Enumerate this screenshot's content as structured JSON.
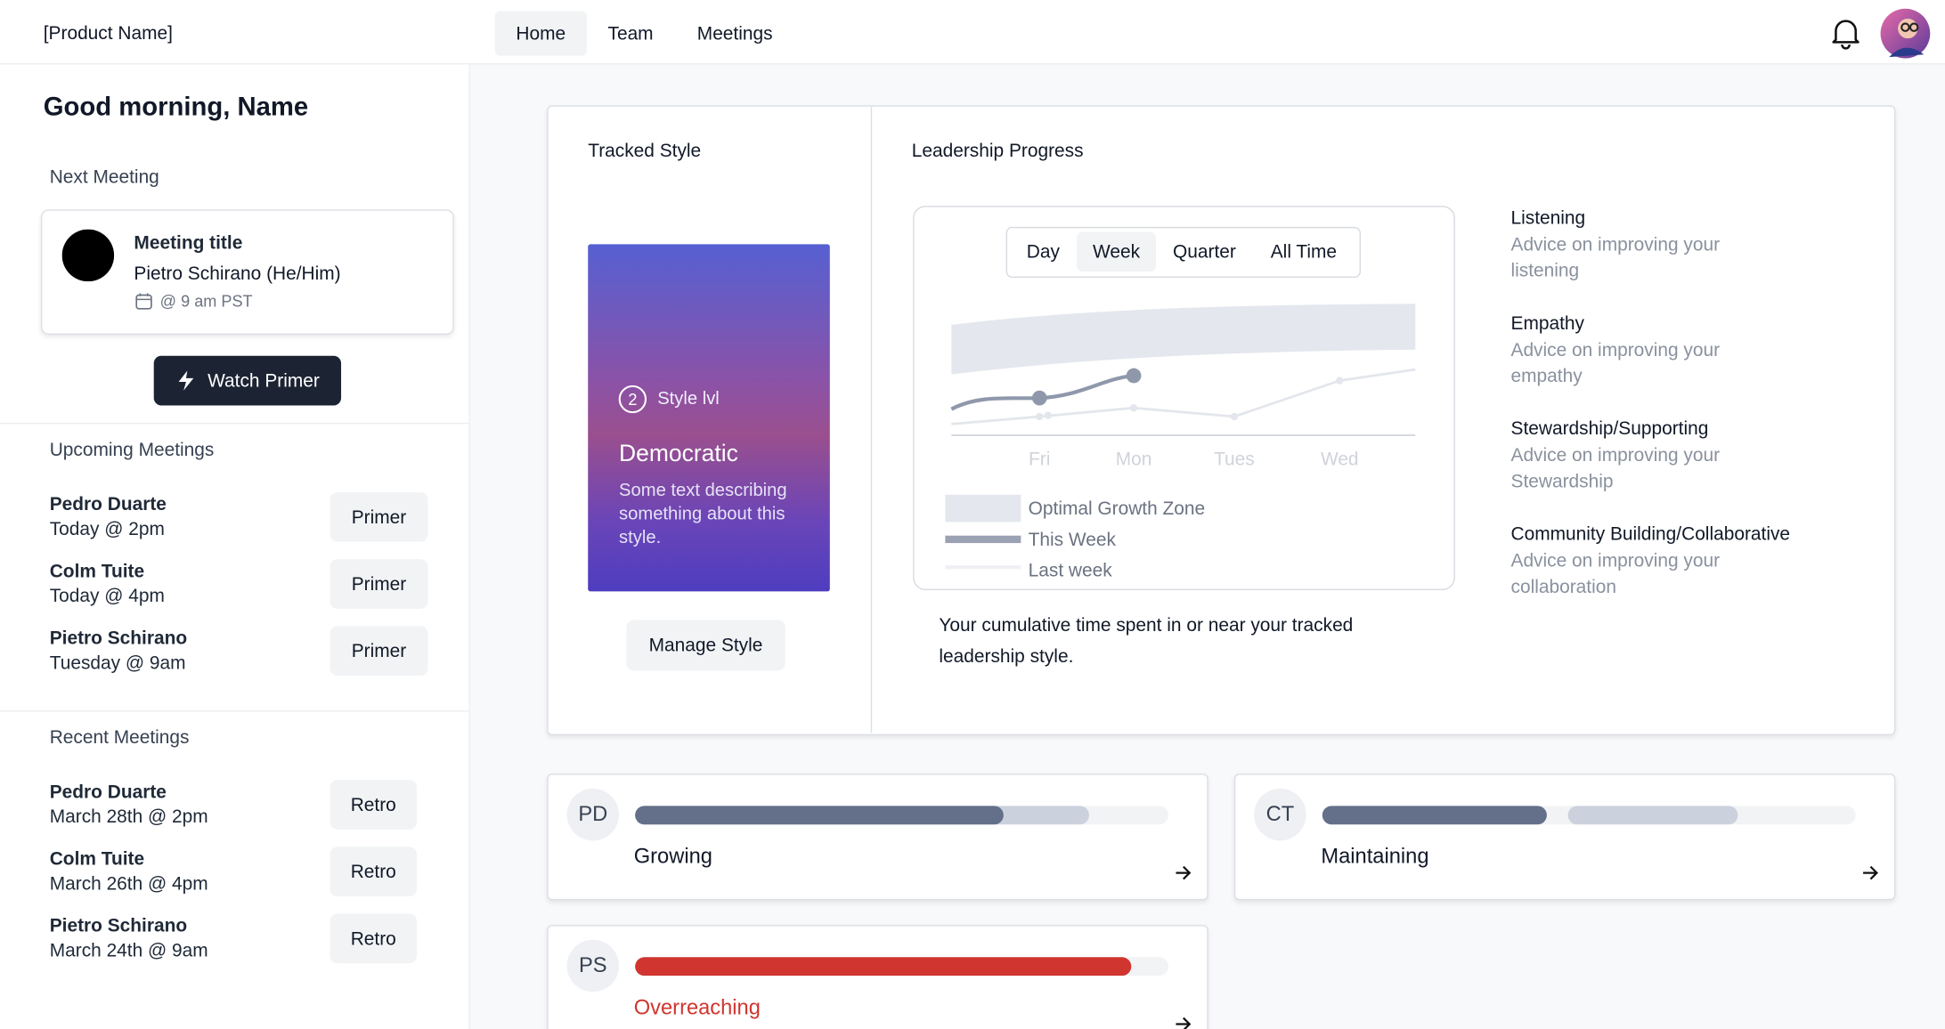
{
  "header": {
    "product_name": "[Product Name]",
    "nav": [
      "Home",
      "Team",
      "Meetings"
    ],
    "active_nav": 0
  },
  "sidebar": {
    "greeting": "Good morning, Name",
    "next_meeting": {
      "heading": "Next Meeting",
      "title": "Meeting title",
      "person": "Pietro Schirano (He/Him)",
      "time": "@ 9 am PST",
      "button": "Watch Primer"
    },
    "upcoming": {
      "heading": "Upcoming Meetings",
      "items": [
        {
          "name": "Pedro Duarte",
          "time": "Today @ 2pm",
          "action": "Primer"
        },
        {
          "name": "Colm Tuite",
          "time": "Today @ 4pm",
          "action": "Primer"
        },
        {
          "name": "Pietro Schirano",
          "time": "Tuesday @ 9am",
          "action": "Primer"
        }
      ]
    },
    "recent": {
      "heading": "Recent Meetings",
      "items": [
        {
          "name": "Pedro Duarte",
          "time": "March 28th @ 2pm",
          "action": "Retro"
        },
        {
          "name": "Colm Tuite",
          "time": "March 26th @ 4pm",
          "action": "Retro"
        },
        {
          "name": "Pietro Schirano",
          "time": "March 24th @ 9am",
          "action": "Retro"
        }
      ]
    }
  },
  "tracked_style": {
    "heading": "Tracked Style",
    "level": 2,
    "level_label": "Style lvl",
    "name": "Democratic",
    "description": "Some text describing something about this style.",
    "button": "Manage Style"
  },
  "leadership": {
    "heading": "Leadership Progress",
    "ranges": [
      "Day",
      "Week",
      "Quarter",
      "All Time"
    ],
    "selected_range": 1,
    "categories": [
      "Fri",
      "Mon",
      "Tues",
      "Wed"
    ],
    "legend": [
      "Optimal Growth Zone",
      "This Week",
      "Last week"
    ],
    "caption": "Your cumulative time spent in or near your tracked leadership style."
  },
  "skills": [
    {
      "name": "Listening",
      "advice": "Advice on improving your listening"
    },
    {
      "name": "Empathy",
      "advice": "Advice on improving your empathy"
    },
    {
      "name": "Stewardship/Supporting",
      "advice": "Advice on improving your Stewardship"
    },
    {
      "name": "Community Building/Collaborative",
      "advice": "Advice on improving your collaboration"
    }
  ],
  "people": [
    {
      "initials": "PD",
      "status": "Growing",
      "status_color": "#111827",
      "progress": [
        {
          "from": 0,
          "to": 85,
          "color": "#cbd2dd"
        },
        {
          "from": 0,
          "to": 69,
          "color": "#64708a"
        }
      ]
    },
    {
      "initials": "CT",
      "status": "Maintaining",
      "status_color": "#111827",
      "progress": [
        {
          "from": 0,
          "to": 42,
          "color": "#64708a"
        },
        {
          "from": 46,
          "to": 78,
          "color": "#cbd2dd"
        }
      ]
    },
    {
      "initials": "PS",
      "status": "Overreaching",
      "status_color": "#d0352f",
      "progress": [
        {
          "from": 0,
          "to": 93,
          "color": "#d0352f"
        }
      ]
    }
  ]
}
